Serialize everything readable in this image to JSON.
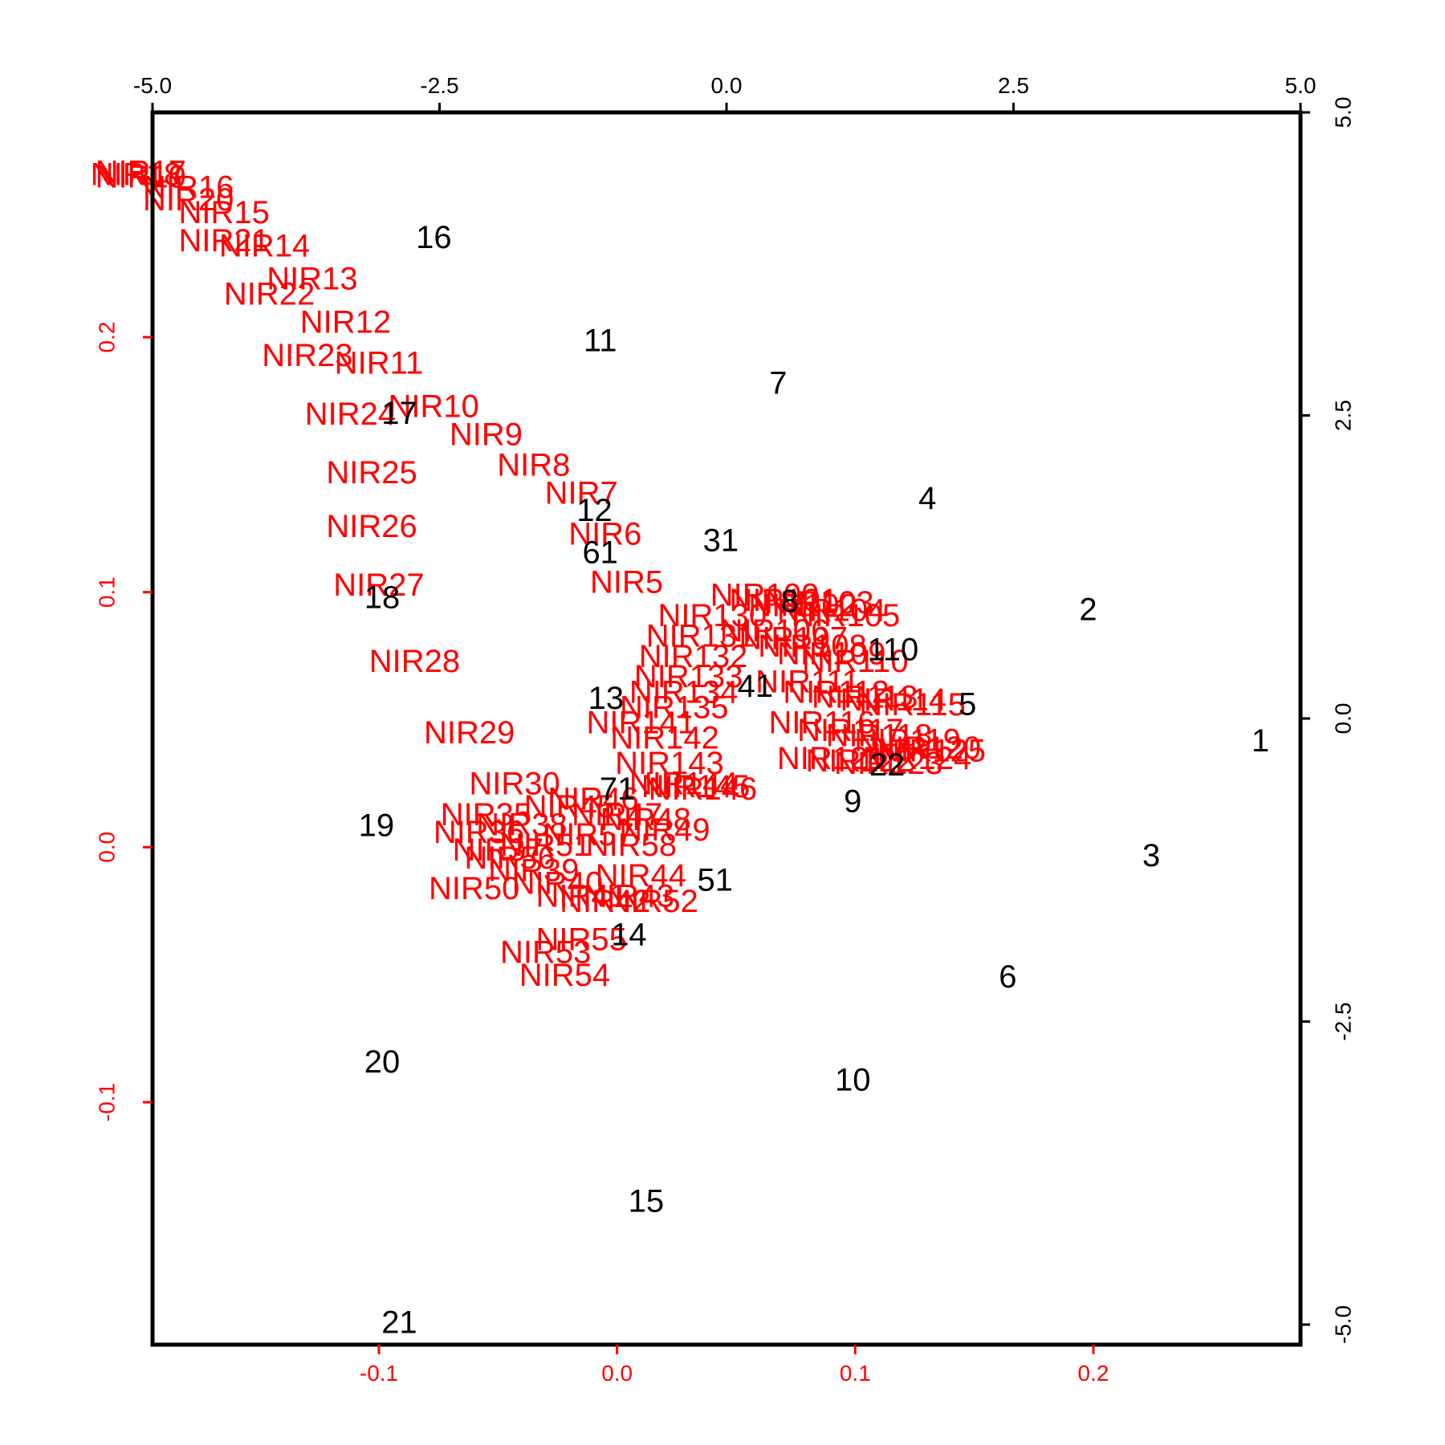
{
  "chart_data": {
    "type": "scatter",
    "title": "",
    "colors": {
      "observations": "#000000",
      "variables": "#ff0000",
      "frame": "#000000"
    },
    "axes": {
      "top": {
        "range": [
          -5.0,
          5.0
        ],
        "ticks": [
          "-5.0",
          "-2.5",
          "0.0",
          "2.5",
          "5.0"
        ],
        "tick_values": [
          -5.0,
          -2.5,
          0.0,
          2.5,
          5.0
        ],
        "color": "#000000"
      },
      "right": {
        "range": [
          -5.0,
          5.0
        ],
        "ticks": [
          "-5.0",
          "-2.5",
          "0.0",
          "2.5",
          "5.0"
        ],
        "tick_values": [
          -5.0,
          -2.5,
          0.0,
          2.5,
          5.0
        ],
        "color": "#000000"
      },
      "bottom": {
        "range": [
          -0.1,
          0.2
        ],
        "ticks": [
          "-0.1",
          "0.0",
          "0.1",
          "0.2"
        ],
        "tick_values": [
          -0.1,
          0.0,
          0.1,
          0.2
        ],
        "color": "#ff0000"
      },
      "left": {
        "range": [
          -0.1,
          0.2
        ],
        "ticks": [
          "-0.1",
          "0.0",
          "0.1",
          "0.2"
        ],
        "tick_values": [
          -0.1,
          0.0,
          0.1,
          0.2
        ],
        "color": "#ff0000"
      }
    },
    "observations": [
      {
        "label": "1",
        "x": 4.65,
        "y": -0.2
      },
      {
        "label": "2",
        "x": 3.15,
        "y": 0.88
      },
      {
        "label": "3",
        "x": 3.7,
        "y": -1.15
      },
      {
        "label": "4",
        "x": 1.75,
        "y": 1.8
      },
      {
        "label": "5",
        "x": 2.1,
        "y": 0.1
      },
      {
        "label": "6",
        "x": 2.45,
        "y": -2.15
      },
      {
        "label": "7",
        "x": 0.45,
        "y": 2.75
      },
      {
        "label": "8",
        "x": 0.55,
        "y": 0.95
      },
      {
        "label": "9",
        "x": 1.1,
        "y": -0.7
      },
      {
        "label": "10",
        "x": 1.1,
        "y": -3.0
      },
      {
        "label": "11",
        "x": -1.1,
        "y": 3.1
      },
      {
        "label": "12",
        "x": -1.15,
        "y": 1.7
      },
      {
        "label": "13",
        "x": -1.05,
        "y": 0.15
      },
      {
        "label": "14",
        "x": -0.85,
        "y": -1.8
      },
      {
        "label": "15",
        "x": -0.7,
        "y": -4.0
      },
      {
        "label": "16",
        "x": -2.55,
        "y": 3.95
      },
      {
        "label": "17",
        "x": -2.85,
        "y": 2.5
      },
      {
        "label": "18",
        "x": -3.0,
        "y": 0.98
      },
      {
        "label": "19",
        "x": -3.05,
        "y": -0.9
      },
      {
        "label": "20",
        "x": -3.0,
        "y": -2.85
      },
      {
        "label": "21",
        "x": -2.85,
        "y": -5.0
      },
      {
        "label": "22",
        "x": 1.4,
        "y": -0.4
      },
      {
        "label": "31",
        "x": -0.05,
        "y": 1.45
      },
      {
        "label": "41",
        "x": 0.25,
        "y": 0.25
      },
      {
        "label": "51",
        "x": -0.1,
        "y": -1.35
      },
      {
        "label": "61",
        "x": -1.1,
        "y": 1.35
      },
      {
        "label": "71",
        "x": -0.95,
        "y": -0.6
      },
      {
        "label": "110",
        "x": 1.45,
        "y": 0.55
      }
    ],
    "variables": [
      {
        "label": "NIR17",
        "x": -0.2,
        "y": 0.264
      },
      {
        "label": "NIR18",
        "x": -0.202,
        "y": 0.263
      },
      {
        "label": "NIR19",
        "x": -0.2,
        "y": 0.262
      },
      {
        "label": "NIR16",
        "x": -0.18,
        "y": 0.258
      },
      {
        "label": "NIR20",
        "x": -0.18,
        "y": 0.253
      },
      {
        "label": "NIR15",
        "x": -0.165,
        "y": 0.248
      },
      {
        "label": "NIR21",
        "x": -0.165,
        "y": 0.237
      },
      {
        "label": "NIR14",
        "x": -0.148,
        "y": 0.235
      },
      {
        "label": "NIR13",
        "x": -0.128,
        "y": 0.222
      },
      {
        "label": "NIR22",
        "x": -0.146,
        "y": 0.216
      },
      {
        "label": "NIR12",
        "x": -0.114,
        "y": 0.205
      },
      {
        "label": "NIR23",
        "x": -0.13,
        "y": 0.192
      },
      {
        "label": "NIR11",
        "x": -0.1,
        "y": 0.189
      },
      {
        "label": "NIR10",
        "x": -0.077,
        "y": 0.172
      },
      {
        "label": "NIR24",
        "x": -0.112,
        "y": 0.169
      },
      {
        "label": "NIR9",
        "x": -0.055,
        "y": 0.161
      },
      {
        "label": "NIR8",
        "x": -0.035,
        "y": 0.149
      },
      {
        "label": "NIR25",
        "x": -0.103,
        "y": 0.146
      },
      {
        "label": "NIR7",
        "x": -0.015,
        "y": 0.138
      },
      {
        "label": "NIR26",
        "x": -0.103,
        "y": 0.125
      },
      {
        "label": "NIR6",
        "x": -0.005,
        "y": 0.122
      },
      {
        "label": "NIR5",
        "x": 0.004,
        "y": 0.103
      },
      {
        "label": "NIR27",
        "x": -0.1,
        "y": 0.102
      },
      {
        "label": "NIR28",
        "x": -0.085,
        "y": 0.072
      },
      {
        "label": "NIR29",
        "x": -0.062,
        "y": 0.044
      },
      {
        "label": "NIR30",
        "x": -0.043,
        "y": 0.024
      },
      {
        "label": "NIR141",
        "x": 0.01,
        "y": 0.048
      },
      {
        "label": "NIR142",
        "x": 0.02,
        "y": 0.042
      },
      {
        "label": "NIR143",
        "x": 0.022,
        "y": 0.032
      },
      {
        "label": "NIR144",
        "x": 0.028,
        "y": 0.024
      },
      {
        "label": "NIR145",
        "x": 0.033,
        "y": 0.023
      },
      {
        "label": "NIR146",
        "x": 0.036,
        "y": 0.022
      },
      {
        "label": "NIR53",
        "x": -0.03,
        "y": -0.042
      },
      {
        "label": "NIR54",
        "x": -0.022,
        "y": -0.051
      },
      {
        "label": "NIR55",
        "x": -0.015,
        "y": -0.037
      },
      {
        "label": "NIR50",
        "x": -0.06,
        "y": -0.017
      },
      {
        "label": "NIR35",
        "x": -0.055,
        "y": 0.012
      },
      {
        "label": "NIR36",
        "x": -0.058,
        "y": 0.005
      },
      {
        "label": "NIR37",
        "x": -0.05,
        "y": -0.002
      },
      {
        "label": "NIR38",
        "x": -0.04,
        "y": 0.008
      },
      {
        "label": "NIR39",
        "x": -0.035,
        "y": -0.01
      },
      {
        "label": "NIR40",
        "x": -0.025,
        "y": -0.015
      },
      {
        "label": "NIR41",
        "x": -0.015,
        "y": -0.02
      },
      {
        "label": "NIR42",
        "x": -0.005,
        "y": -0.022
      },
      {
        "label": "NIR43",
        "x": 0.005,
        "y": -0.02
      },
      {
        "label": "NIR44",
        "x": 0.01,
        "y": -0.012
      },
      {
        "label": "NIR45",
        "x": -0.02,
        "y": 0.015
      },
      {
        "label": "NIR46",
        "x": -0.01,
        "y": 0.018
      },
      {
        "label": "NIR47",
        "x": 0.0,
        "y": 0.012
      },
      {
        "label": "NIR48",
        "x": 0.012,
        "y": 0.01
      },
      {
        "label": "NIR49",
        "x": 0.02,
        "y": 0.006
      },
      {
        "label": "NIR51",
        "x": -0.03,
        "y": 0.0
      },
      {
        "label": "NIR52",
        "x": 0.015,
        "y": -0.022
      },
      {
        "label": "NIR56",
        "x": -0.045,
        "y": -0.005
      },
      {
        "label": "NIR57",
        "x": -0.012,
        "y": 0.004
      },
      {
        "label": "NIR58",
        "x": 0.006,
        "y": 0.0
      },
      {
        "label": "NIR100",
        "x": 0.062,
        "y": 0.098
      },
      {
        "label": "NIR101",
        "x": 0.07,
        "y": 0.096
      },
      {
        "label": "NIR102",
        "x": 0.078,
        "y": 0.094
      },
      {
        "label": "NIR103",
        "x": 0.085,
        "y": 0.095
      },
      {
        "label": "NIR104",
        "x": 0.09,
        "y": 0.092
      },
      {
        "label": "NIR105",
        "x": 0.096,
        "y": 0.09
      },
      {
        "label": "NIR106",
        "x": 0.066,
        "y": 0.084
      },
      {
        "label": "NIR107",
        "x": 0.074,
        "y": 0.081
      },
      {
        "label": "NIR108",
        "x": 0.082,
        "y": 0.078
      },
      {
        "label": "NIR109",
        "x": 0.09,
        "y": 0.075
      },
      {
        "label": "NIR110",
        "x": 0.1,
        "y": 0.072
      },
      {
        "label": "NIR111",
        "x": 0.08,
        "y": 0.064
      },
      {
        "label": "NIR112",
        "x": 0.092,
        "y": 0.06
      },
      {
        "label": "NIR113",
        "x": 0.104,
        "y": 0.058
      },
      {
        "label": "NIR114",
        "x": 0.116,
        "y": 0.057
      },
      {
        "label": "NIR115",
        "x": 0.124,
        "y": 0.055
      },
      {
        "label": "NIR116",
        "x": 0.086,
        "y": 0.048
      },
      {
        "label": "NIR117",
        "x": 0.098,
        "y": 0.045
      },
      {
        "label": "NIR118",
        "x": 0.11,
        "y": 0.043
      },
      {
        "label": "NIR119",
        "x": 0.122,
        "y": 0.041
      },
      {
        "label": "NIR120",
        "x": 0.13,
        "y": 0.038
      },
      {
        "label": "NIR121",
        "x": 0.09,
        "y": 0.034
      },
      {
        "label": "NIR122",
        "x": 0.102,
        "y": 0.033
      },
      {
        "label": "NIR123",
        "x": 0.114,
        "y": 0.032
      },
      {
        "label": "NIR124",
        "x": 0.126,
        "y": 0.034
      },
      {
        "label": "NIR125",
        "x": 0.132,
        "y": 0.037
      },
      {
        "label": "NIR130",
        "x": 0.04,
        "y": 0.09
      },
      {
        "label": "NIR131",
        "x": 0.035,
        "y": 0.082
      },
      {
        "label": "NIR132",
        "x": 0.032,
        "y": 0.074
      },
      {
        "label": "NIR133",
        "x": 0.03,
        "y": 0.066
      },
      {
        "label": "NIR134",
        "x": 0.028,
        "y": 0.06
      },
      {
        "label": "NIR135",
        "x": 0.024,
        "y": 0.054
      }
    ]
  }
}
